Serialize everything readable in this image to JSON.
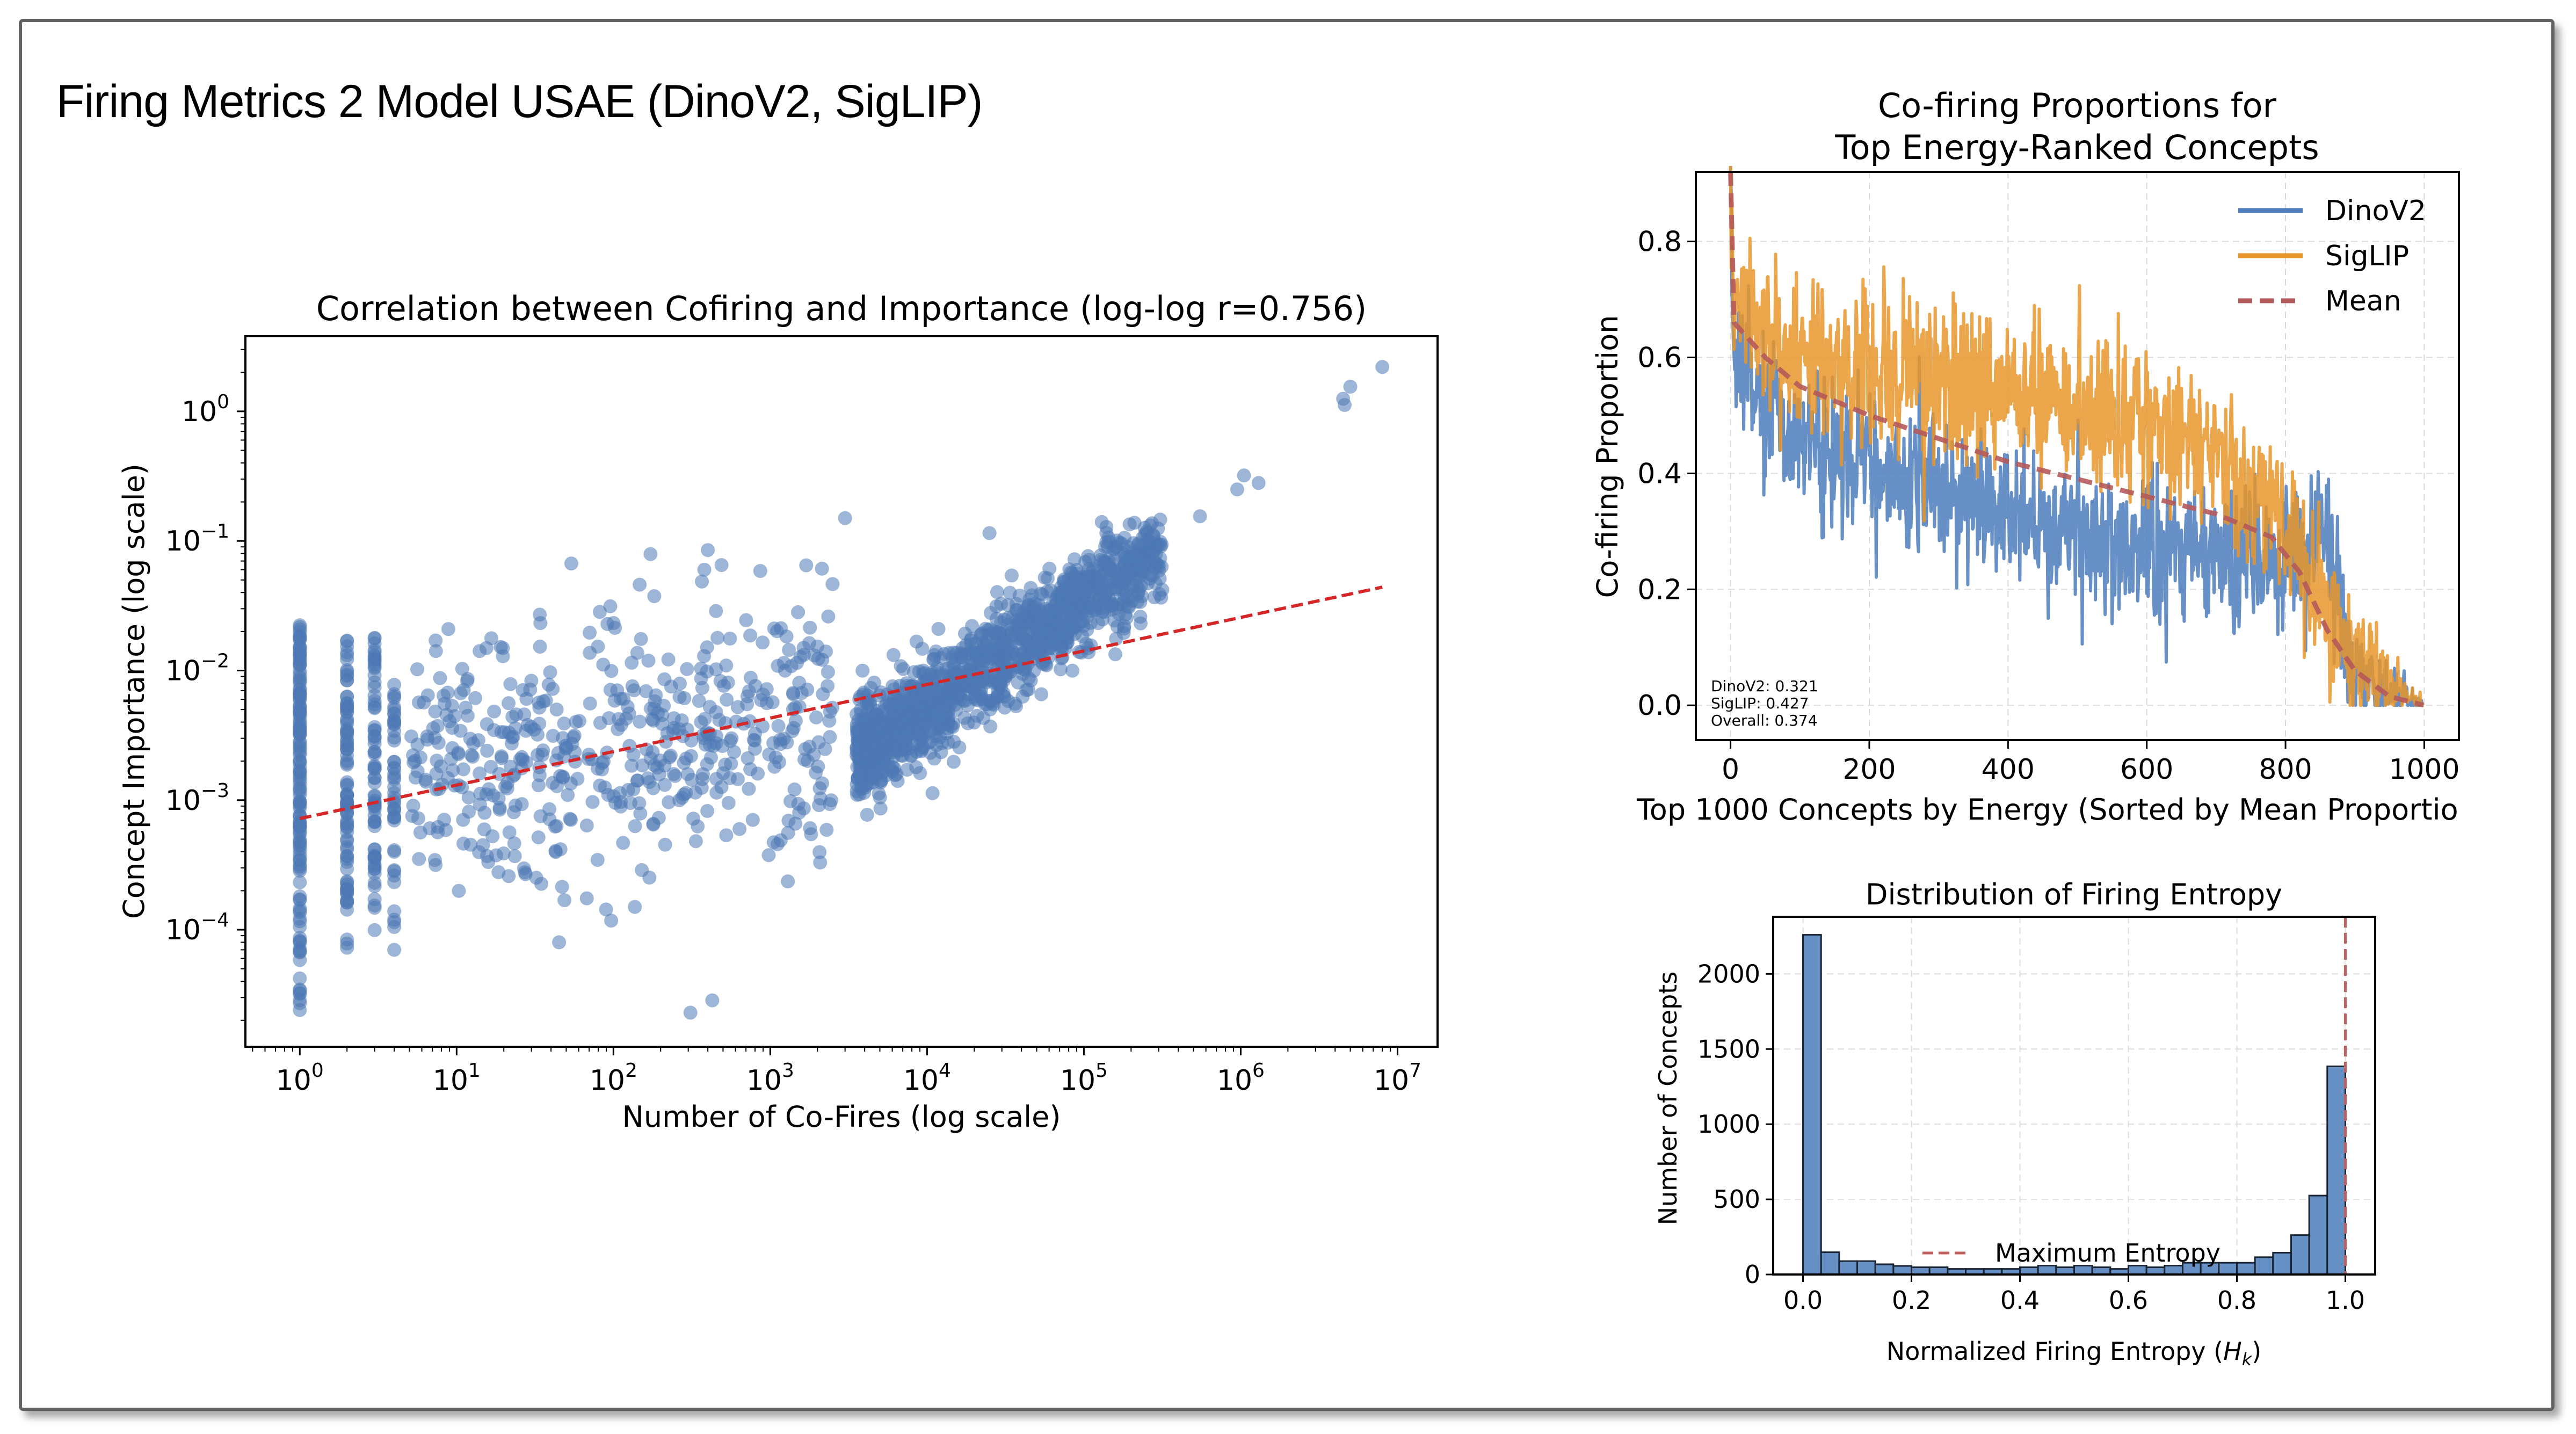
{
  "page": {
    "title": "Firing Metrics 2 Model USAE (DinoV2, SigLIP)",
    "frame_color": "#636363"
  },
  "chart_data": [
    {
      "id": "scatter",
      "type": "scatter",
      "title": "Correlation between Cofiring and Importance (log-log r=0.756)",
      "xlabel": "Number of Co-Fires (log scale)",
      "ylabel": "Concept Importance (log scale)",
      "xscale": "log",
      "yscale": "log",
      "xlim": [
        0.45,
        18000000
      ],
      "ylim": [
        1.25e-05,
        3.8
      ],
      "xticks": [
        {
          "value": 1,
          "base": "10",
          "exp": "0"
        },
        {
          "value": 10,
          "base": "10",
          "exp": "1"
        },
        {
          "value": 100,
          "base": "10",
          "exp": "2"
        },
        {
          "value": 1000,
          "base": "10",
          "exp": "3"
        },
        {
          "value": 10000,
          "base": "10",
          "exp": "4"
        },
        {
          "value": 100000,
          "base": "10",
          "exp": "5"
        },
        {
          "value": 1000000,
          "base": "10",
          "exp": "6"
        },
        {
          "value": 10000000,
          "base": "10",
          "exp": "7"
        }
      ],
      "yticks": [
        {
          "value": 1,
          "base": "10",
          "exp": "0"
        },
        {
          "value": 0.1,
          "base": "10",
          "exp": "−1"
        },
        {
          "value": 0.01,
          "base": "10",
          "exp": "−2"
        },
        {
          "value": 0.001,
          "base": "10",
          "exp": "−3"
        },
        {
          "value": 0.0001,
          "base": "10",
          "exp": "−4"
        }
      ],
      "grid": false,
      "point_color": "#4c78b5",
      "point_alpha": 0.55,
      "trend_line": {
        "color": "#d62728",
        "style": "dashed",
        "from": [
          1,
          0.00072
        ],
        "to": [
          8000000,
          0.044
        ]
      },
      "clusters": [
        {
          "name": "discrete-x-1",
          "x": 1,
          "y_log_range": [
            -4.6,
            -1.65
          ],
          "count": 140
        },
        {
          "name": "discrete-x-2",
          "x": 2,
          "y_log_range": [
            -4.15,
            -1.75
          ],
          "count": 90
        },
        {
          "name": "discrete-x-3",
          "x": 3,
          "y_log_range": [
            -4.05,
            -1.65
          ],
          "count": 70
        },
        {
          "name": "discrete-x-4",
          "x": 4,
          "y_log_range": [
            -4.15,
            -2.1
          ],
          "count": 45
        },
        {
          "name": "sparse-low",
          "x_log_range": [
            0.7,
            3.4
          ],
          "y_log_center": [
            -2.7,
            -2.4
          ],
          "y_log_spread": 0.85,
          "count": 520
        },
        {
          "name": "dense-band",
          "x_log_range": [
            3.55,
            5.5
          ],
          "y_log_line": [
            [
              3.55,
              -2.65
            ],
            [
              5.5,
              -1.05
            ]
          ],
          "y_log_spread": 0.18,
          "count": 1400
        }
      ],
      "outliers": [
        [
          8000000,
          2.2
        ],
        [
          5000000,
          1.55
        ],
        [
          4500000,
          1.25
        ],
        [
          4600000,
          1.12
        ],
        [
          1050000,
          0.32
        ],
        [
          950000,
          0.25
        ],
        [
          1300000,
          0.28
        ],
        [
          550000,
          0.155
        ],
        [
          130000,
          0.14
        ],
        [
          3000,
          0.15
        ],
        [
          25000,
          0.115
        ],
        [
          400,
          0.085
        ],
        [
          380,
          0.06
        ],
        [
          1,
          2.4e-05
        ],
        [
          4,
          7e-05
        ],
        [
          45,
          8e-05
        ]
      ]
    },
    {
      "id": "cofiring",
      "type": "line",
      "title_lines": [
        "Co-firing Proportions for",
        "Top Energy-Ranked Concepts"
      ],
      "xlabel": "Top 1000 Concepts by Energy (Sorted by Mean Proportio",
      "ylabel": "Co-firing Proportion",
      "xlim": [
        -50,
        1050
      ],
      "ylim": [
        -0.06,
        0.92
      ],
      "xticks": [
        0,
        200,
        400,
        600,
        800,
        1000
      ],
      "yticks": [
        "0.0",
        "0.2",
        "0.4",
        "0.6",
        "0.8"
      ],
      "ytick_values": [
        0,
        0.2,
        0.4,
        0.6,
        0.8
      ],
      "grid": true,
      "legend": {
        "position": "top-right",
        "entries": [
          "DinoV2",
          "SigLIP",
          "Mean"
        ]
      },
      "annotation": [
        "DinoV2: 0.321",
        "SigLIP: 0.427",
        "Overall: 0.374"
      ],
      "n_points": 1000,
      "series": [
        {
          "name": "DinoV2",
          "color": "#4c7dbd",
          "style": "solid",
          "mean": 0.321,
          "trend": [
            [
              0,
              0.93
            ],
            [
              5,
              0.62
            ],
            [
              50,
              0.5
            ],
            [
              200,
              0.42
            ],
            [
              400,
              0.33
            ],
            [
              600,
              0.27
            ],
            [
              800,
              0.25
            ],
            [
              860,
              0.3
            ],
            [
              900,
              0.03
            ],
            [
              1000,
              0.0
            ]
          ],
          "noise": 0.06
        },
        {
          "name": "SigLIP",
          "color": "#e8962c",
          "style": "solid",
          "mean": 0.427,
          "trend": [
            [
              0,
              0.92
            ],
            [
              5,
              0.68
            ],
            [
              50,
              0.62
            ],
            [
              200,
              0.58
            ],
            [
              400,
              0.54
            ],
            [
              600,
              0.49
            ],
            [
              700,
              0.42
            ],
            [
              800,
              0.33
            ],
            [
              860,
              0.18
            ],
            [
              900,
              0.08
            ],
            [
              1000,
              0.0
            ]
          ],
          "noise": 0.065
        },
        {
          "name": "Mean",
          "color": "#b55a5a",
          "style": "dashed",
          "mean": 0.374,
          "trend": [
            [
              0,
              0.92
            ],
            [
              5,
              0.66
            ],
            [
              50,
              0.6
            ],
            [
              100,
              0.55
            ],
            [
              200,
              0.5
            ],
            [
              300,
              0.46
            ],
            [
              400,
              0.42
            ],
            [
              500,
              0.39
            ],
            [
              600,
              0.36
            ],
            [
              700,
              0.33
            ],
            [
              780,
              0.29
            ],
            [
              820,
              0.23
            ],
            [
              860,
              0.13
            ],
            [
              900,
              0.06
            ],
            [
              950,
              0.015
            ],
            [
              1000,
              0.0
            ]
          ],
          "noise": 0
        }
      ]
    },
    {
      "id": "entropy",
      "type": "bar",
      "title": "Distribution of Firing Entropy",
      "xlabel": "Normalized Firing Entropy (",
      "xlabel_math": "H",
      "xlabel_sub": "k",
      "xlabel_tail": ")",
      "ylabel": "Number of Concepts",
      "xlim": [
        -0.055,
        1.055
      ],
      "ylim": [
        0,
        2380
      ],
      "xticks": [
        "0.0",
        "0.2",
        "0.4",
        "0.6",
        "0.8",
        "1.0"
      ],
      "xtick_values": [
        0,
        0.2,
        0.4,
        0.6,
        0.8,
        1.0
      ],
      "yticks": [
        "0",
        "500",
        "1000",
        "1500",
        "2000"
      ],
      "ytick_values": [
        0,
        500,
        1000,
        1500,
        2000
      ],
      "grid": true,
      "bin_range": [
        0,
        1
      ],
      "bar_color": "#6690c4",
      "edge_color": "#1a2433",
      "values": [
        2260,
        148,
        89,
        89,
        68,
        57,
        48,
        48,
        37,
        37,
        37,
        37,
        48,
        59,
        48,
        59,
        48,
        37,
        59,
        48,
        59,
        78,
        78,
        78,
        78,
        115,
        145,
        262,
        525,
        1385
      ],
      "vline": {
        "x": 1.0,
        "color": "#c0605e",
        "style": "dashed",
        "label": "Maximum Entropy"
      },
      "legend": {
        "position": "lower-center",
        "entries": [
          "Maximum Entropy"
        ]
      }
    }
  ]
}
